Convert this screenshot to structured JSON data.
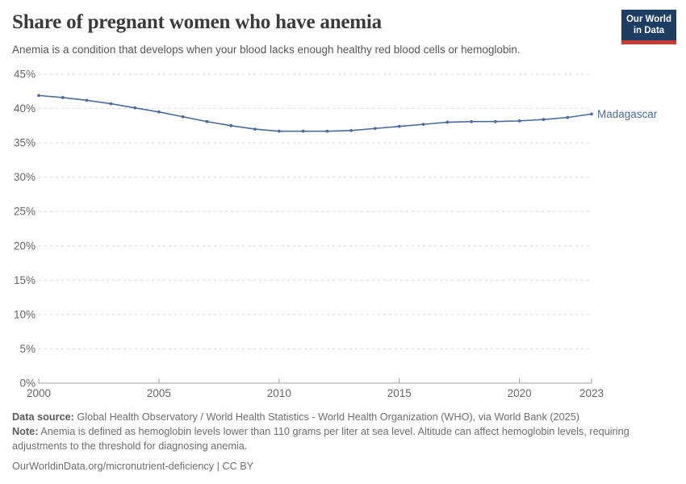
{
  "header": {
    "title": "Share of pregnant women who have anemia",
    "subtitle": "Anemia is a condition that develops when your blood lacks enough healthy red blood cells or hemoglobin.",
    "logo": {
      "line1": "Our World",
      "line2": "in Data",
      "bg_color": "#1d3d63",
      "accent_color": "#cb3c33"
    }
  },
  "chart_data": {
    "type": "line",
    "title": "Share of pregnant women who have anemia",
    "xlabel": "",
    "ylabel": "",
    "xlim": [
      2000,
      2023
    ],
    "ylim": [
      0,
      45
    ],
    "x_ticks": [
      2000,
      2005,
      2010,
      2015,
      2020,
      2023
    ],
    "y_ticks": [
      0,
      5,
      10,
      15,
      20,
      25,
      30,
      35,
      40,
      45
    ],
    "y_tick_suffix": "%",
    "grid": "horizontal-dashed",
    "legend_position": "end-of-line-label",
    "series": [
      {
        "name": "Madagascar",
        "color": "#4c6a9c",
        "x": [
          2000,
          2001,
          2002,
          2003,
          2004,
          2005,
          2006,
          2007,
          2008,
          2009,
          2010,
          2011,
          2012,
          2013,
          2014,
          2015,
          2016,
          2017,
          2018,
          2019,
          2020,
          2021,
          2022,
          2023
        ],
        "values": [
          41.9,
          41.6,
          41.2,
          40.7,
          40.1,
          39.5,
          38.8,
          38.1,
          37.5,
          37.0,
          36.7,
          36.7,
          36.7,
          36.8,
          37.1,
          37.4,
          37.7,
          38.0,
          38.1,
          38.1,
          38.2,
          38.4,
          38.7,
          39.2
        ]
      }
    ],
    "colors": {
      "gridline": "#d9d9d9",
      "axis": "#a1a1a1",
      "tick_label": "#666666"
    }
  },
  "footer": {
    "data_source_label": "Data source:",
    "data_source_text": " Global Health Observatory / World Health Statistics - World Health Organization (WHO), via World Bank (2025)",
    "note_label": "Note:",
    "note_text": " Anemia is defined as hemoglobin levels lower than 110 grams per liter at sea level. Altitude can affect hemoglobin levels, requiring adjustments to the threshold for diagnosing anemia.",
    "url": "OurWorldinData.org/micronutrient-deficiency | CC BY"
  }
}
